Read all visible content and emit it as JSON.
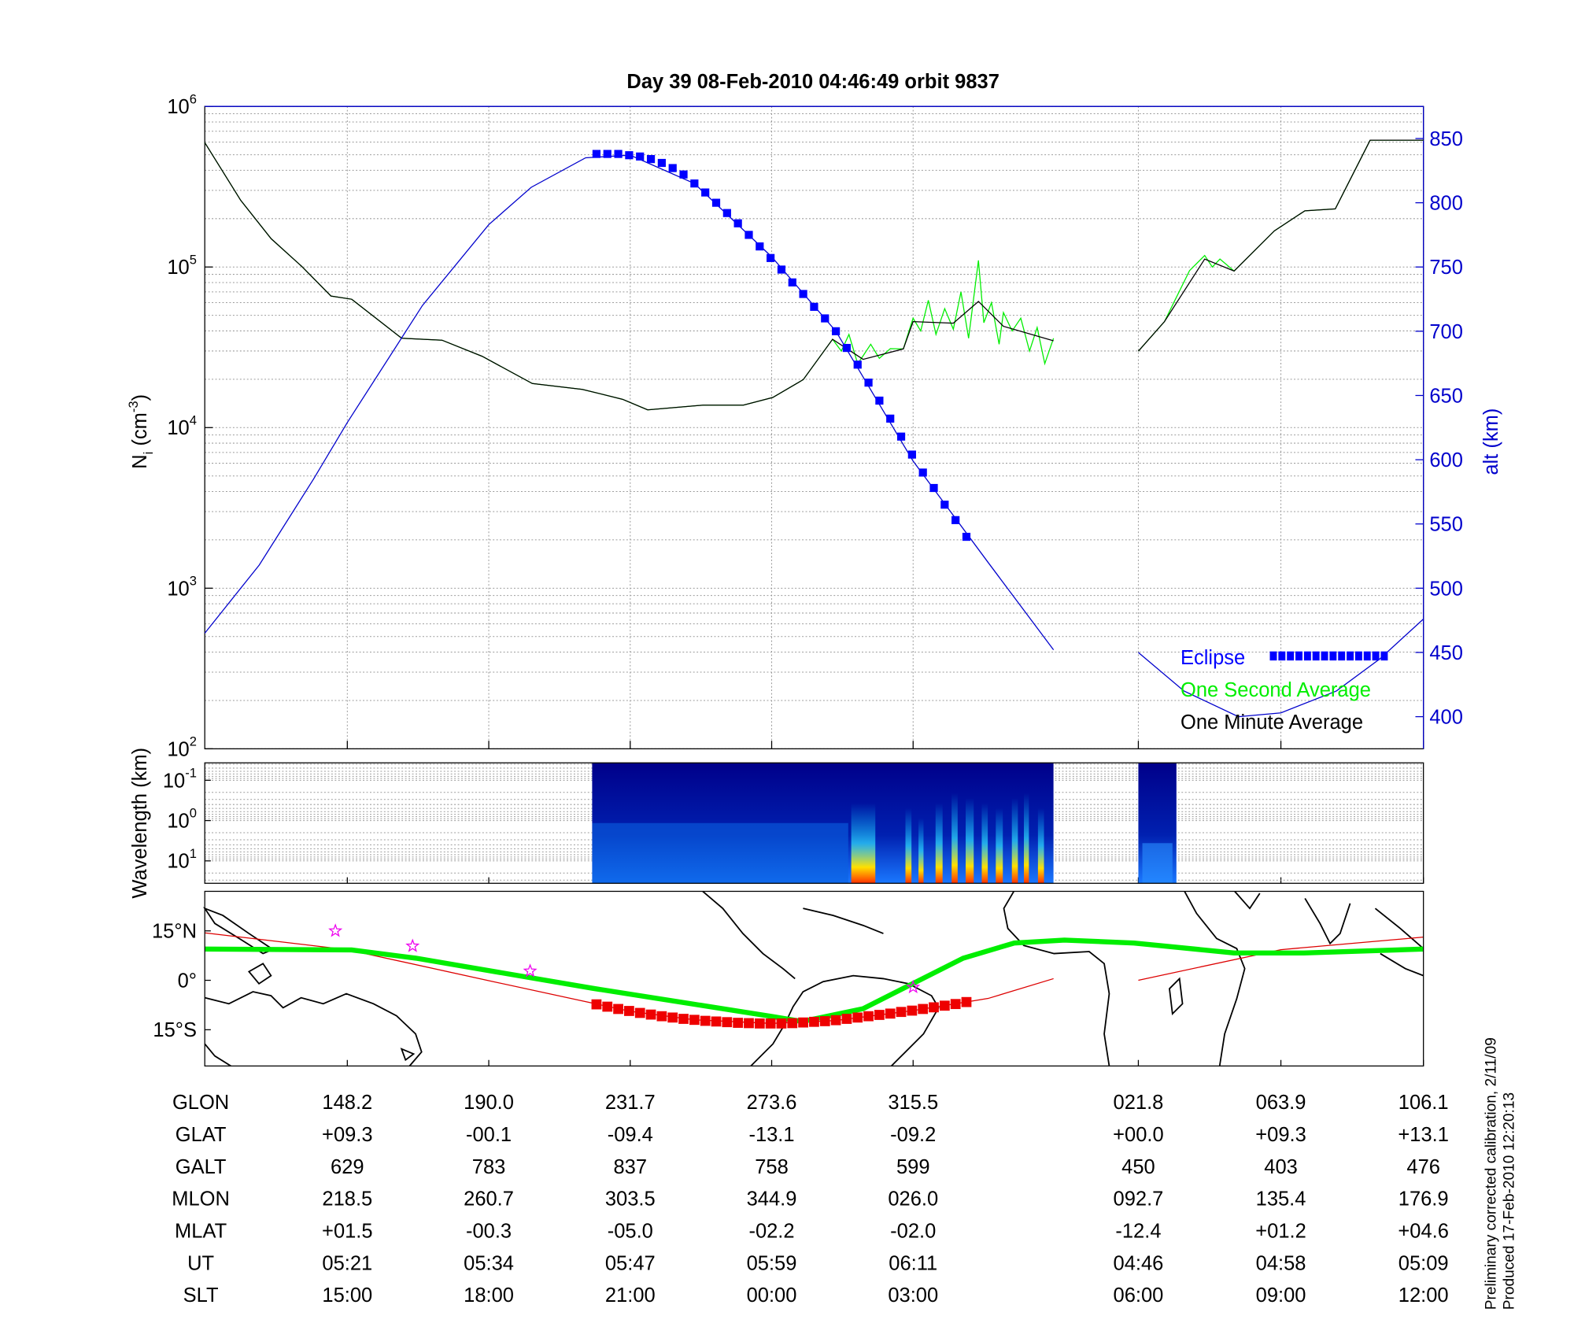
{
  "chart_data": {
    "type": "line",
    "title": "Day 39  08-Feb-2010 04:46:49   orbit 9837",
    "ylabel": {
      "base": "N",
      "sub": "i",
      "unit": " (cm",
      "exp": "-3",
      "close": ")"
    },
    "y2label": "alt (km)",
    "ylog": true,
    "ylim": [
      100,
      1000000
    ],
    "yticks": [
      {
        "value": 100,
        "label": "10",
        "exponent": "2"
      },
      {
        "value": 1000,
        "label": "10",
        "exponent": "3"
      },
      {
        "value": 10000,
        "label": "10",
        "exponent": "4"
      },
      {
        "value": 100000,
        "label": "10",
        "exponent": "5"
      },
      {
        "value": 1000000,
        "label": "10",
        "exponent": "6"
      }
    ],
    "y2lim": [
      375,
      875
    ],
    "y2ticks": [
      400,
      450,
      500,
      550,
      600,
      650,
      700,
      750,
      800,
      850
    ],
    "xlim": [
      0,
      112
    ],
    "xticks": [
      13.1,
      26.1,
      39.1,
      52.1,
      65.1,
      85.8,
      98.9,
      112
    ],
    "grid": true,
    "legend_loc": "lower right",
    "series": [
      {
        "name": "Eclipse",
        "color": "#0000ff",
        "axis": "y2",
        "marker": "square",
        "x": [
          36,
          37,
          38,
          39,
          40,
          41,
          42,
          43,
          44,
          45,
          46,
          47,
          48,
          49,
          50,
          51,
          52,
          53,
          54,
          55,
          56,
          57,
          58,
          59,
          60,
          61,
          62,
          63,
          64,
          65,
          66,
          67,
          68,
          69,
          70
        ],
        "values": [
          838,
          838,
          838,
          837,
          836,
          834,
          831,
          827,
          822,
          815,
          808,
          800,
          792,
          784,
          775,
          766,
          757,
          748,
          738,
          729,
          719,
          710,
          700,
          687,
          674,
          660,
          646,
          632,
          618,
          604,
          590,
          578,
          565,
          553,
          540
        ]
      },
      {
        "name": "One Second Average",
        "color": "#00ee00",
        "x": [
          0,
          3.3,
          6.1,
          8.9,
          11.6,
          13.5,
          18.1,
          21.8,
          25.5,
          30.1,
          34.7,
          38.4,
          40.7,
          45.8,
          49.5,
          52.2,
          55,
          57.7,
          58.5,
          59.2,
          60,
          60.5,
          61.2,
          62,
          63,
          64.2,
          65.1,
          65.8,
          66.5,
          67.2,
          68,
          68.8,
          69.5,
          70.2,
          71.1,
          71.6,
          72.3,
          73,
          73.4,
          74.2,
          75,
          75.8,
          76.5,
          77.2,
          78,
          null,
          85.8,
          88.2,
          90.5,
          91.9,
          92.6,
          93.3,
          94.6,
          98.3,
          101.1,
          103.9,
          107.1,
          112
        ],
        "values": [
          595000,
          260000,
          150000,
          101000,
          66000,
          63000,
          36000,
          35000,
          27800,
          18800,
          17300,
          15000,
          12900,
          13800,
          13800,
          15400,
          19900,
          35500,
          30000,
          38000,
          25000,
          28000,
          33000,
          27000,
          31000,
          30900,
          48000,
          40000,
          62000,
          38000,
          55000,
          41000,
          70000,
          36000,
          110000,
          45000,
          60000,
          33000,
          52000,
          40000,
          48000,
          30000,
          42000,
          25000,
          36000,
          null,
          29900,
          45700,
          95000,
          118000,
          100000,
          112000,
          94400,
          168000,
          224000,
          230000,
          616000,
          616000
        ]
      },
      {
        "name": "One Minute Average",
        "color": "#000000",
        "x": [
          0,
          3.3,
          6.1,
          8.9,
          11.6,
          13.5,
          18.1,
          21.8,
          25.5,
          30.1,
          34.7,
          38.4,
          40.7,
          45.8,
          49.5,
          52.2,
          55,
          57.7,
          60.5,
          64.2,
          65.1,
          68.8,
          71.1,
          73.4,
          78,
          null,
          85.8,
          88.2,
          91.9,
          94.6,
          98.3,
          101.1,
          103.9,
          107.1,
          112
        ],
        "values": [
          595000,
          260000,
          150000,
          101000,
          66000,
          63000,
          36000,
          35000,
          27800,
          18800,
          17300,
          15000,
          12900,
          13800,
          13800,
          15400,
          19900,
          35500,
          26600,
          30900,
          45700,
          44700,
          61000,
          42700,
          34700,
          null,
          29900,
          45700,
          112000,
          94400,
          168000,
          224000,
          230000,
          616000,
          616000
        ]
      },
      {
        "color": "#0000cc",
        "axis": "y2",
        "x": [
          0,
          5,
          10,
          13.1,
          20,
          26.1,
          30,
          35,
          39.1,
          45,
          52.1,
          58,
          65.1,
          72,
          78,
          null,
          85.8,
          90,
          95,
          98.9,
          104,
          108,
          112
        ],
        "values": [
          465,
          518,
          585,
          629,
          720,
          783,
          812,
          835,
          837,
          815,
          758,
          700,
          599,
          520,
          452,
          null,
          450,
          420,
          400,
          403,
          420,
          445,
          476
        ]
      }
    ],
    "spectrogram": {
      "ylabel": "Wavelength (km)",
      "ylog": true,
      "ylim": [
        0.037,
        36
      ],
      "yreverse": true,
      "yticks": [
        {
          "value": 0.1,
          "label": "10",
          "exponent": "-1"
        },
        {
          "value": 1,
          "label": "10",
          "exponent": "0"
        },
        {
          "value": 10,
          "label": "10",
          "exponent": "1"
        }
      ],
      "segments": [
        [
          35.6,
          78
        ],
        [
          85.8,
          89.3
        ]
      ]
    },
    "map": {
      "ylim": [
        -26,
        27
      ],
      "yticks": [
        {
          "value": 15,
          "label": "15°N"
        },
        {
          "value": 0,
          "label": "0°"
        },
        {
          "value": -15,
          "label": "15°S"
        }
      ],
      "series": [
        {
          "color": "#dd0000",
          "x": [
            0,
            13.1,
            26.1,
            39.1,
            45,
            52.1,
            58,
            65.1,
            72,
            78,
            null,
            85.8,
            98.9,
            112
          ],
          "values": [
            14.4,
            9.3,
            -0.1,
            -9.4,
            -12,
            -13.1,
            -12.2,
            -9.2,
            -5.5,
            0.5,
            null,
            0,
            9.3,
            13.1
          ]
        },
        {
          "color": "#00ee00",
          "x": [
            0,
            13.5,
            19.4,
            35.6,
            52.2,
            54.9,
            60.5,
            69.7,
            74.4,
            79,
            85.4,
            94.6,
            101,
            112
          ],
          "values": [
            9.5,
            9.2,
            6.7,
            -2.4,
            -11,
            -12.5,
            -8.6,
            6.7,
            11.3,
            12.2,
            11.3,
            8.3,
            8.3,
            9.5
          ]
        },
        {
          "color": "#ee0000",
          "marker": "square",
          "x": [
            36,
            37,
            38,
            39,
            40,
            41,
            42,
            43,
            44,
            45,
            46,
            47,
            48,
            49,
            50,
            51,
            52,
            53,
            54,
            55,
            56,
            57,
            58,
            59,
            60,
            61,
            62,
            63,
            64,
            65,
            66,
            67,
            68,
            69,
            70
          ],
          "values": [
            -7.3,
            -8,
            -8.7,
            -9.3,
            -9.9,
            -10.4,
            -10.9,
            -11.3,
            -11.7,
            -12,
            -12.3,
            -12.5,
            -12.7,
            -12.9,
            -13,
            -13.1,
            -13.1,
            -13.1,
            -13,
            -12.8,
            -12.6,
            -12.4,
            -12.1,
            -11.7,
            -11.3,
            -10.9,
            -10.5,
            -10.1,
            -9.6,
            -9.2,
            -8.7,
            -8.2,
            -7.7,
            -7.2,
            -6.6
          ]
        },
        {
          "color": "#ee00ee",
          "marker": "star",
          "x": [
            12,
            19.1,
            29.9,
            65.1
          ],
          "values": [
            15,
            10.4,
            2.8,
            -2.1
          ]
        }
      ]
    },
    "table": {
      "row_labels": [
        "GLON",
        "GLAT",
        "GALT",
        "MLON",
        "MLAT",
        "UT",
        "SLT"
      ],
      "rows": [
        [
          "148.2",
          "190.0",
          "231.7",
          "273.6",
          "315.5",
          "021.8",
          "063.9",
          "106.1"
        ],
        [
          "+09.3",
          "-00.1",
          "-09.4",
          "-13.1",
          "-09.2",
          "+00.0",
          "+09.3",
          "+13.1"
        ],
        [
          "629",
          "783",
          "837",
          "758",
          "599",
          "450",
          "403",
          "476"
        ],
        [
          "218.5",
          "260.7",
          "303.5",
          "344.9",
          "026.0",
          "092.7",
          "135.4",
          "176.9"
        ],
        [
          "+01.5",
          "-00.3",
          "-05.0",
          "-02.2",
          "-02.0",
          "-12.4",
          "+01.2",
          "+04.6"
        ],
        [
          "05:21",
          "05:34",
          "05:47",
          "05:59",
          "06:11",
          "04:46",
          "04:58",
          "05:09"
        ],
        [
          "15:00",
          "18:00",
          "21:00",
          "00:00",
          "03:00",
          "06:00",
          "09:00",
          "12:00"
        ]
      ]
    },
    "notes": [
      "Preliminary corrected calibration, 2/11/09",
      "Produced 17-Feb-2010 12:20:13"
    ]
  }
}
